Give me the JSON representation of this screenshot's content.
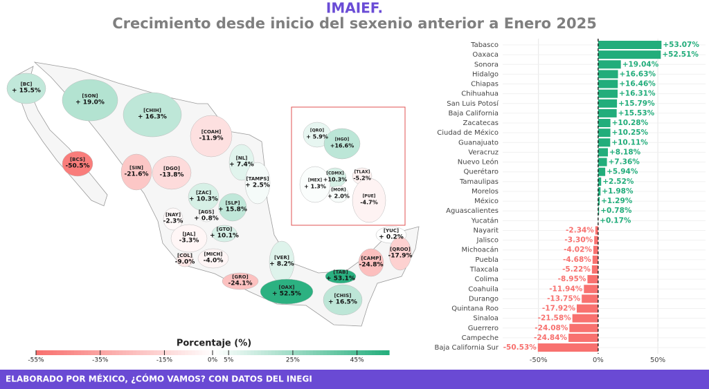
{
  "header": {
    "title": "IMAIEF.",
    "subtitle": "Crecimiento desde inicio del sexenio anterior a Enero 2025"
  },
  "chart_data": [
    {
      "type": "map",
      "legend_title": "Porcentaje (%)",
      "regions": [
        "[BC]",
        "[SON]",
        "[CHIH]",
        "[COAH]",
        "[BCS]",
        "[NL]",
        "[SIN]",
        "[DGO]",
        "[TAMPS]",
        "[ZAC]",
        "[SLP]",
        "[AGS]",
        "[NAY]",
        "[GTO]",
        "[JAL]",
        "[YUC]",
        "[QROO]",
        "[COL]",
        "[MICH]",
        "[VER]",
        "[CAMP]",
        "[GRO]",
        "[TAB]",
        "[OAX]",
        "[CHIS]",
        "[QRO]",
        "[HGO]",
        "[CDMX]",
        "[TLAX]",
        "[MEX]",
        "[MOR]",
        "[PUE]"
      ],
      "values": [
        15.5,
        19.0,
        16.3,
        -11.9,
        -50.5,
        7.4,
        -21.6,
        -13.8,
        2.5,
        10.3,
        15.8,
        0.8,
        -2.3,
        10.1,
        -3.3,
        0.2,
        -17.9,
        -9.0,
        -4.0,
        8.2,
        -24.8,
        -24.1,
        53.1,
        52.5,
        16.5,
        5.9,
        16.6,
        10.3,
        -5.2,
        1.3,
        2.0,
        -4.7
      ],
      "value_labels": [
        "+ 15.5%",
        "+ 19.0%",
        "+ 16.3%",
        "-11.9%",
        "-50.5%",
        "+ 7.4%",
        "-21.6%",
        "-13.8%",
        "+ 2.5%",
        "+ 10.3%",
        "+ 15.8%",
        "+ 0.8%",
        "-2.3%",
        "+ 10.1%",
        "-3.3%",
        "+ 0.2%",
        "-17.9%",
        "-9.0%",
        "-4.0%",
        "+ 8.2%",
        "-24.8%",
        "-24.1%",
        "+ 53.1%",
        "+ 52.5%",
        "+ 16.5%",
        "+ 5.9%",
        "+16.6%",
        "+10.3%",
        "-5.2%",
        "+ 1.3%",
        "+ 2.0%",
        "-4.7%"
      ],
      "clim": [
        -55,
        55
      ],
      "cticks": [
        {
          "value": -55,
          "label": "-55%"
        },
        {
          "value": -35,
          "label": "-35%"
        },
        {
          "value": -15,
          "label": "-15%"
        },
        {
          "value": 0,
          "label": "0%"
        },
        {
          "value": 5,
          "label": "5%"
        },
        {
          "value": 25,
          "label": "25%"
        },
        {
          "value": 45,
          "label": "45%"
        }
      ],
      "colors": {
        "low": "#f8716f",
        "mid": "#ffffff",
        "high": "#22ad7b"
      }
    },
    {
      "type": "bar",
      "orientation": "horizontal",
      "categories": [
        "Tabasco",
        "Oaxaca",
        "Sonora",
        "Hidalgo",
        "Chiapas",
        "Chihuahua",
        "San Luis Potosí",
        "Baja California",
        "Zacatecas",
        "Ciudad de México",
        "Guanajuato",
        "Veracruz",
        "Nuevo León",
        "Querétaro",
        "Tamaulipas",
        "Morelos",
        "México",
        "Aguascalientes",
        "Yucatán",
        "Nayarit",
        "Jalisco",
        "Michoacán",
        "Puebla",
        "Tlaxcala",
        "Colima",
        "Coahuila",
        "Durango",
        "Quintana Roo",
        "Sinaloa",
        "Guerrero",
        "Campeche",
        "Baja California Sur"
      ],
      "values": [
        53.07,
        52.51,
        19.04,
        16.63,
        16.46,
        16.31,
        15.79,
        15.53,
        10.28,
        10.25,
        10.11,
        8.18,
        7.36,
        5.94,
        2.52,
        1.98,
        1.29,
        0.78,
        0.17,
        -2.34,
        -3.3,
        -4.02,
        -4.68,
        -5.22,
        -8.95,
        -11.94,
        -13.75,
        -17.92,
        -21.58,
        -24.08,
        -24.84,
        -50.53
      ],
      "value_labels": [
        "+53.07%",
        "+52.51%",
        "+19.04%",
        "+16.63%",
        "+16.46%",
        "+16.31%",
        "+15.79%",
        "+15.53%",
        "+10.28%",
        "+10.25%",
        "+10.11%",
        "+8.18%",
        "+7.36%",
        "+5.94%",
        "+2.52%",
        "+1.98%",
        "+1.29%",
        "+0.78%",
        "+0.17%",
        "-2.34%",
        "-3.30%",
        "-4.02%",
        "-4.68%",
        "-5.22%",
        "-8.95%",
        "-11.94%",
        "-13.75%",
        "-17.92%",
        "-21.58%",
        "-24.08%",
        "-24.84%",
        "-50.53%"
      ],
      "xlim": [
        -80,
        90
      ],
      "xticks": [
        {
          "value": -50,
          "label": "-50%"
        },
        {
          "value": 0,
          "label": "0%"
        },
        {
          "value": 50,
          "label": "50%"
        }
      ],
      "grid": true,
      "positive_color": "#22ad7b",
      "negative_color": "#f8716f"
    }
  ],
  "footer": "ELABORADO POR MÉXICO, ¿CÓMO VAMOS? CON DATOS DEL INEGI"
}
